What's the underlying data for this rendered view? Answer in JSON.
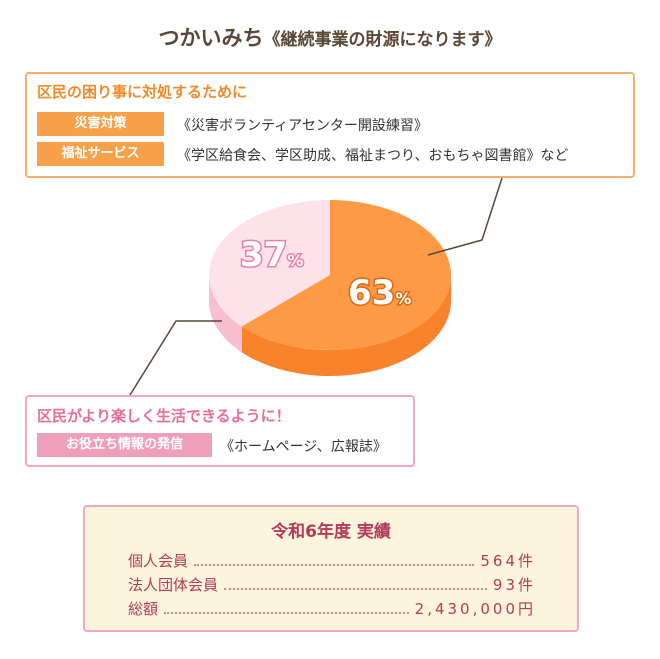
{
  "title": {
    "main": "つかいみち",
    "sub": "《継続事業の財源になります》"
  },
  "colors": {
    "orange_top": "#fe9a45",
    "orange_side": "#f9822d",
    "pink_top": "#fde2e9",
    "pink_side": "#f7bfd0",
    "leader_line": "#5a4636",
    "orange_accent": "#f08a2a",
    "pink_accent": "#e76f97",
    "results_text": "#b33a5a"
  },
  "chart_data": {
    "type": "pie",
    "slices": [
      {
        "value": 63,
        "color": "#fe9a45"
      },
      {
        "value": 37,
        "color": "#fde2e9"
      }
    ],
    "labels": [
      {
        "number": "63",
        "unit": "%"
      },
      {
        "number": "37",
        "unit": "%"
      }
    ]
  },
  "purpose_orange": {
    "heading": "区民の困り事に対処するために",
    "rows": [
      {
        "tag": "災害対策",
        "text": "《災害ボランティアセンター開設練習》"
      },
      {
        "tag": "福祉サービス",
        "text": "《学区給食会、学区助成、福祉まつり、おもちゃ図書館》など"
      }
    ]
  },
  "purpose_pink": {
    "heading": "区民がより楽しく生活できるように！",
    "rows": [
      {
        "tag": "お役立ち情報の発信",
        "text": "《ホームページ、広報誌》"
      }
    ]
  },
  "results": {
    "title": "令和6年度 実績",
    "rows": [
      {
        "label": "個人会員",
        "value": "564件"
      },
      {
        "label": "法人団体会員",
        "value": "93件"
      },
      {
        "label": "総額",
        "value": "2,430,000円"
      }
    ]
  }
}
